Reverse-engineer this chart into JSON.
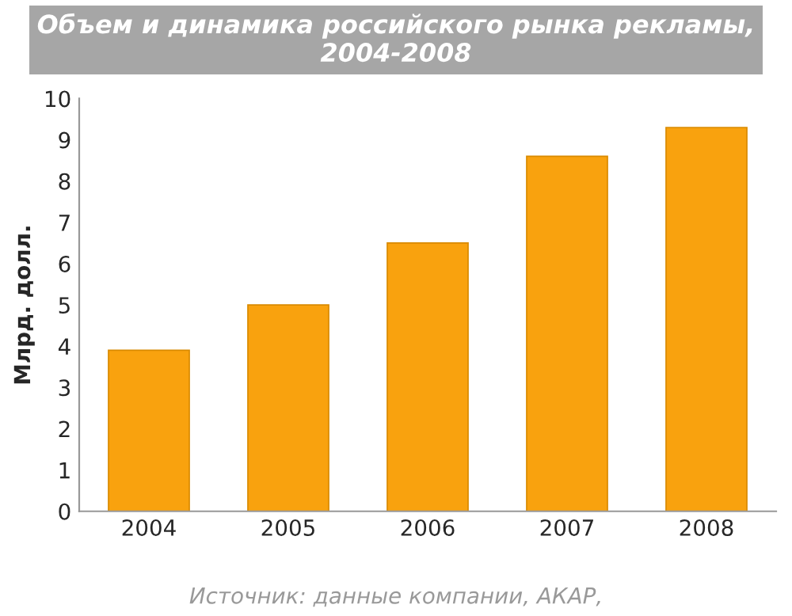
{
  "chart_data": {
    "type": "bar",
    "title": "Объем и динамика российского рынка рекламы,\n2004-2008",
    "categories": [
      "2004",
      "2005",
      "2006",
      "2007",
      "2008"
    ],
    "values": [
      3.9,
      5.0,
      6.5,
      8.6,
      9.3
    ],
    "color": "#f9a20e",
    "ylabel": "Млрд. долл.",
    "ylim": [
      0,
      10
    ],
    "yticks": [
      0,
      1,
      2,
      3,
      4,
      5,
      6,
      7,
      8,
      9,
      10
    ],
    "grid": false,
    "annotations": [
      "Источник: данные компании, АКАР,"
    ]
  }
}
